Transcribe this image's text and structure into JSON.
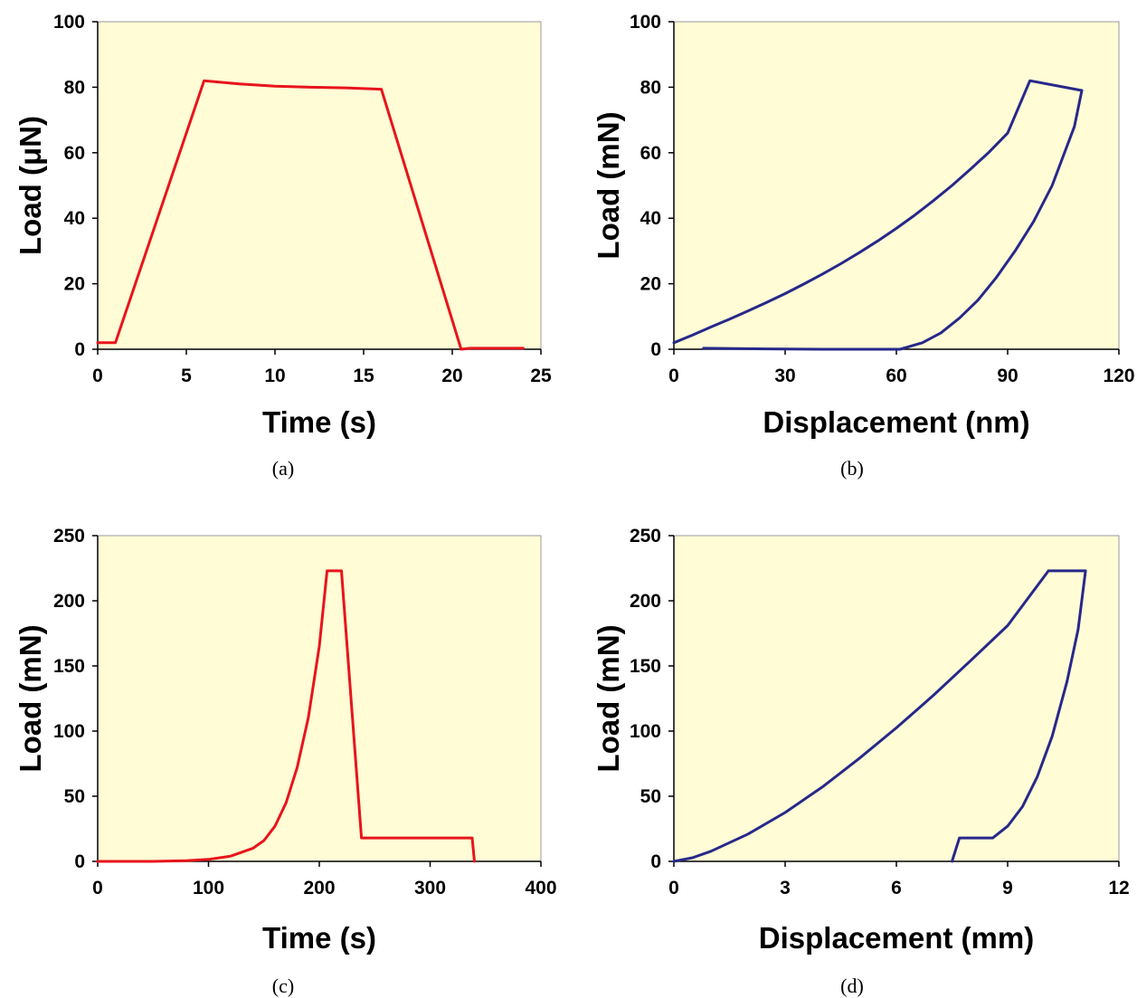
{
  "chart_data": [
    {
      "panel": "(a)",
      "type": "line",
      "xlabel": "Time (s)",
      "ylabel": "Load (μN)",
      "xlim": [
        0,
        25
      ],
      "ylim": [
        0,
        100
      ],
      "xticks": [
        "0",
        "5",
        "10",
        "15",
        "20",
        "25"
      ],
      "yticks": [
        "0",
        "20",
        "40",
        "60",
        "80",
        "100"
      ],
      "grid": false,
      "plot_background": "#fffcd6",
      "series": [
        {
          "color": "#e8141b",
          "x": [
            0,
            1,
            6,
            8,
            10,
            12,
            14,
            16,
            20.5,
            21,
            24
          ],
          "y": [
            2,
            2,
            82,
            81,
            80.3,
            80,
            79.8,
            79.4,
            0,
            0.3,
            0.3
          ]
        }
      ]
    },
    {
      "panel": "(b)",
      "type": "line",
      "xlabel": "Displacement (nm)",
      "ylabel": "Load (mN)",
      "xlim": [
        0,
        120
      ],
      "ylim": [
        0,
        100
      ],
      "xticks": [
        "0",
        "30",
        "60",
        "90",
        "120"
      ],
      "yticks": [
        "0",
        "20",
        "40",
        "60",
        "80",
        "100"
      ],
      "grid": false,
      "plot_background": "#fffcd6",
      "series": [
        {
          "color": "#27288a",
          "x": [
            8,
            25,
            40,
            61,
            67,
            72,
            77,
            82,
            87,
            92,
            97,
            102,
            105,
            108,
            110
          ],
          "y": [
            0.3,
            0.1,
            0,
            0,
            2,
            5,
            9.5,
            15,
            22,
            30,
            39,
            50,
            59,
            68,
            79
          ]
        },
        {
          "color": "#27288a",
          "x": [
            0,
            5,
            10,
            15,
            20,
            25,
            30,
            35,
            40,
            45,
            50,
            55,
            60,
            65,
            70,
            75,
            80,
            85,
            90,
            96,
            110
          ],
          "y": [
            2,
            4.3,
            6.8,
            9.2,
            11.7,
            14.3,
            17,
            19.9,
            22.9,
            26.1,
            29.5,
            33.1,
            36.9,
            41,
            45.4,
            50,
            55,
            60.2,
            66,
            82,
            79
          ]
        }
      ]
    },
    {
      "panel": "(c)",
      "type": "line",
      "xlabel": "Time (s)",
      "ylabel": "Load (mN)",
      "xlim": [
        0,
        400
      ],
      "ylim": [
        0,
        250
      ],
      "xticks": [
        "0",
        "100",
        "200",
        "300",
        "400"
      ],
      "yticks": [
        "0",
        "50",
        "100",
        "150",
        "200",
        "250"
      ],
      "grid": false,
      "plot_background": "#fffcd6",
      "series": [
        {
          "color": "#e8141b",
          "x": [
            0,
            50,
            80,
            100,
            120,
            140,
            150,
            160,
            170,
            180,
            190,
            200,
            207,
            220,
            238,
            260,
            300,
            338,
            340
          ],
          "y": [
            0,
            0,
            0.5,
            1.5,
            4,
            10,
            16,
            27,
            45,
            72,
            110,
            165,
            223,
            223,
            18,
            18,
            18,
            18,
            0
          ]
        }
      ]
    },
    {
      "panel": "(d)",
      "type": "line",
      "xlabel": "Displacement (mm)",
      "ylabel": "Load (mN)",
      "xlim": [
        0,
        12
      ],
      "ylim": [
        0,
        250
      ],
      "xticks": [
        "0",
        "3",
        "6",
        "9",
        "12"
      ],
      "yticks": [
        "0",
        "50",
        "100",
        "150",
        "200",
        "250"
      ],
      "grid": false,
      "plot_background": "#fffcd6",
      "series": [
        {
          "color": "#27288a",
          "x": [
            0,
            0.5,
            1,
            2,
            3,
            4,
            5,
            6,
            7,
            8,
            9,
            10.1,
            11.1,
            10.9,
            10.6,
            10.2,
            9.8,
            9.4,
            9,
            8.6,
            8.5,
            7.7,
            7.5
          ],
          "y": [
            0,
            2.8,
            7.8,
            21,
            37.5,
            57,
            79,
            102.5,
            127.5,
            154,
            181,
            223,
            223,
            178,
            138,
            96,
            65,
            42,
            27,
            18,
            18,
            18,
            0
          ]
        }
      ]
    }
  ],
  "captions": [
    "(a)",
    "(b)",
    "(c)",
    "(d)"
  ]
}
